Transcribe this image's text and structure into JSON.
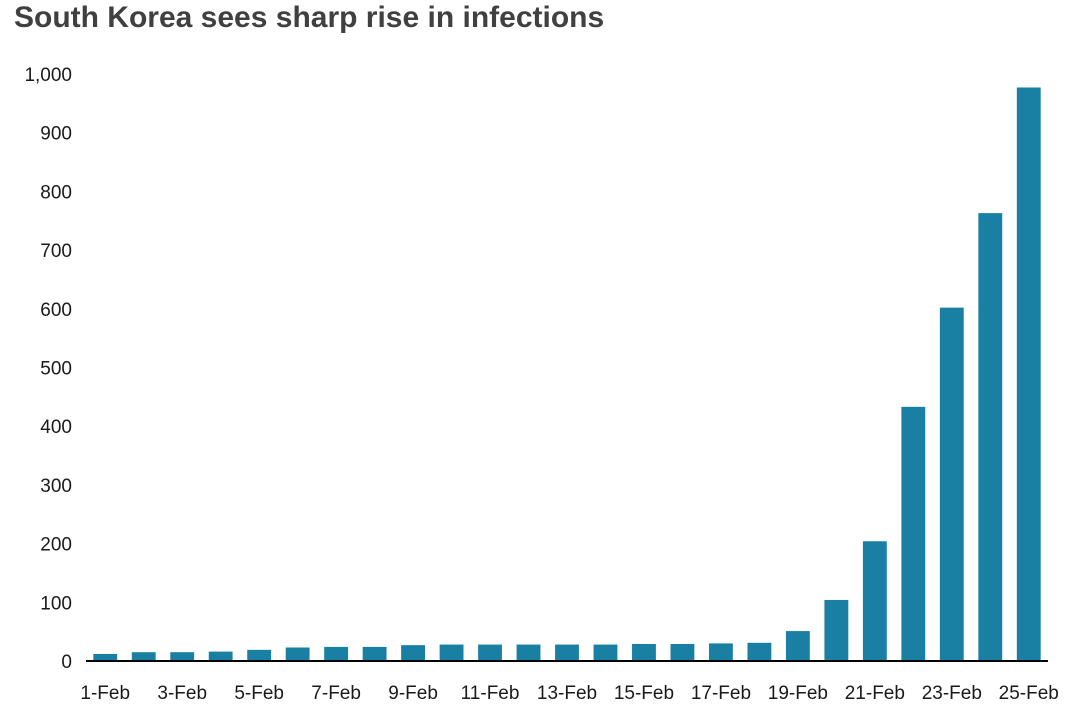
{
  "chart_data": {
    "type": "bar",
    "title": "South Korea sees sharp rise in infections",
    "xlabel": "",
    "ylabel": "",
    "categories": [
      "1-Feb",
      "2-Feb",
      "3-Feb",
      "4-Feb",
      "5-Feb",
      "6-Feb",
      "7-Feb",
      "8-Feb",
      "9-Feb",
      "10-Feb",
      "11-Feb",
      "12-Feb",
      "13-Feb",
      "14-Feb",
      "15-Feb",
      "16-Feb",
      "17-Feb",
      "18-Feb",
      "19-Feb",
      "20-Feb",
      "21-Feb",
      "22-Feb",
      "23-Feb",
      "24-Feb",
      "25-Feb"
    ],
    "tick_labels": [
      "1-Feb",
      "3-Feb",
      "5-Feb",
      "7-Feb",
      "9-Feb",
      "11-Feb",
      "13-Feb",
      "15-Feb",
      "17-Feb",
      "19-Feb",
      "21-Feb",
      "23-Feb",
      "25-Feb"
    ],
    "values": [
      12,
      15,
      15,
      16,
      19,
      23,
      24,
      24,
      27,
      28,
      28,
      28,
      28,
      28,
      29,
      29,
      30,
      31,
      51,
      104,
      204,
      433,
      602,
      763,
      977
    ],
    "ylim": [
      0,
      1000
    ],
    "yticks": [
      0,
      100,
      200,
      300,
      400,
      500,
      600,
      700,
      800,
      900,
      1000
    ],
    "ytick_labels": [
      "0",
      "100",
      "200",
      "300",
      "400",
      "500",
      "600",
      "700",
      "800",
      "900",
      "1,000"
    ],
    "grid": false,
    "legend": "none",
    "bar_color": "#1a80a3",
    "axis_color": "#000000"
  }
}
